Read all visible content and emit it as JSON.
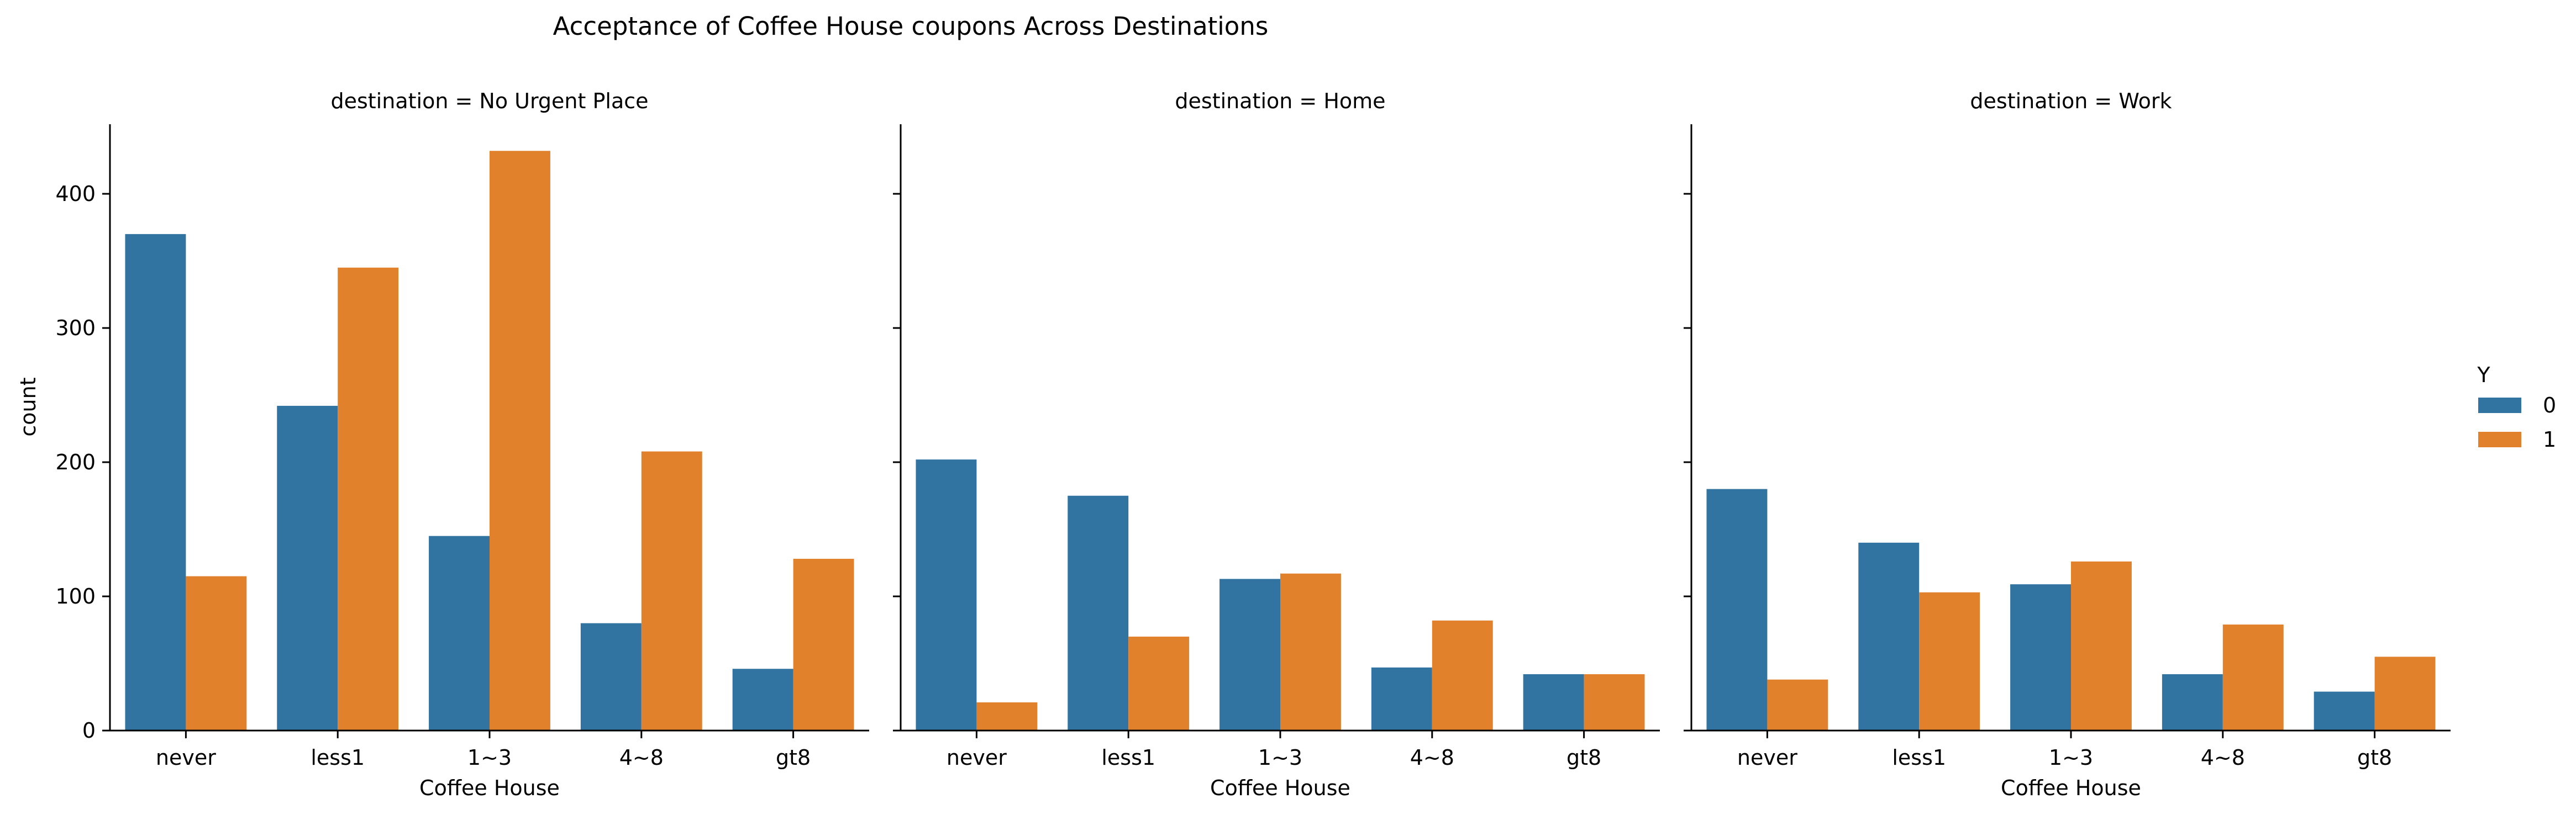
{
  "chart_data": {
    "type": "bar",
    "title": "Acceptance of Coffee House coupons Across Destinations",
    "xlabel": "Coffee House",
    "ylabel": "count",
    "ylim": [
      0,
      455
    ],
    "yticks": [
      0,
      100,
      200,
      300,
      400
    ],
    "categories": [
      "never",
      "less1",
      "1~3",
      "4~8",
      "gt8"
    ],
    "legend": {
      "title": "Y",
      "placement": "right"
    },
    "colors": {
      "0": "#3274a1",
      "1": "#e1812c"
    },
    "facets": [
      {
        "title": "destination = No Urgent Place",
        "series": [
          {
            "name": "0",
            "values": [
              370,
              242,
              145,
              80,
              46
            ]
          },
          {
            "name": "1",
            "values": [
              115,
              345,
              432,
              208,
              128
            ]
          }
        ]
      },
      {
        "title": "destination = Home",
        "series": [
          {
            "name": "0",
            "values": [
              202,
              175,
              113,
              47,
              42
            ]
          },
          {
            "name": "1",
            "values": [
              21,
              70,
              117,
              82,
              42
            ]
          }
        ]
      },
      {
        "title": "destination = Work",
        "series": [
          {
            "name": "0",
            "values": [
              180,
              140,
              109,
              42,
              29
            ]
          },
          {
            "name": "1",
            "values": [
              38,
              103,
              126,
              79,
              55
            ]
          }
        ]
      }
    ]
  }
}
